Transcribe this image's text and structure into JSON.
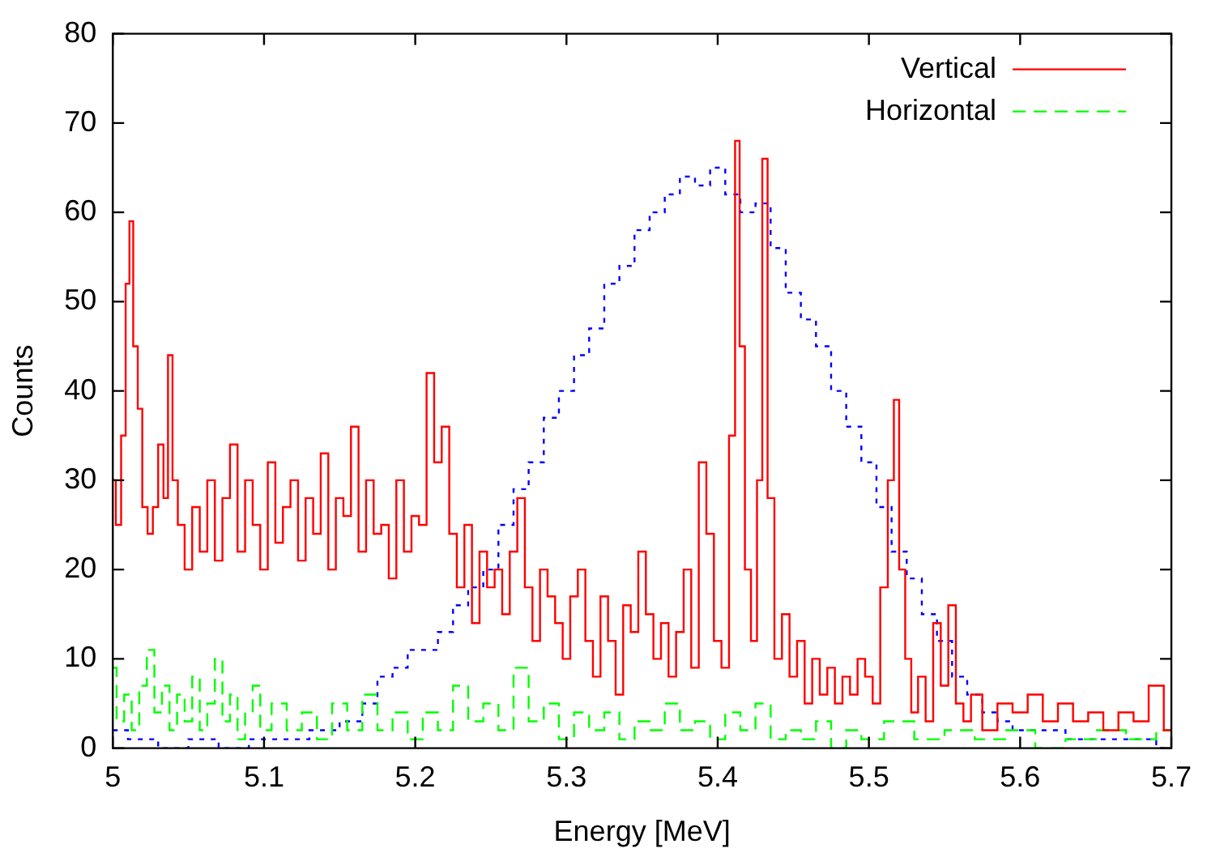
{
  "chart_data": {
    "type": "step",
    "xlabel": "Energy [MeV]",
    "ylabel": "Counts",
    "xlim": [
      5,
      5.7
    ],
    "xticks": [
      5,
      5.1,
      5.2,
      5.3,
      5.4,
      5.5,
      5.6,
      5.7
    ],
    "ylim": [
      0,
      80
    ],
    "yticks": [
      0,
      10,
      20,
      30,
      40,
      50,
      60,
      70,
      80
    ],
    "legend": "top right",
    "grid": false,
    "series": [
      {
        "name": "Vertical",
        "color": "#ff0000",
        "line_style": "solid",
        "x": [
          5.0,
          5.004,
          5.007,
          5.01,
          5.012,
          5.015,
          5.018,
          5.021,
          5.025,
          5.028,
          5.032,
          5.035,
          5.038,
          5.041,
          5.045,
          5.05,
          5.055,
          5.06,
          5.065,
          5.07,
          5.075,
          5.08,
          5.085,
          5.09,
          5.095,
          5.1,
          5.105,
          5.11,
          5.115,
          5.12,
          5.125,
          5.13,
          5.135,
          5.14,
          5.145,
          5.15,
          5.155,
          5.16,
          5.165,
          5.17,
          5.175,
          5.18,
          5.185,
          5.19,
          5.195,
          5.2,
          5.205,
          5.21,
          5.215,
          5.22,
          5.225,
          5.23,
          5.235,
          5.24,
          5.245,
          5.25,
          5.255,
          5.26,
          5.265,
          5.27,
          5.275,
          5.28,
          5.285,
          5.29,
          5.295,
          5.3,
          5.305,
          5.31,
          5.315,
          5.32,
          5.325,
          5.33,
          5.335,
          5.34,
          5.345,
          5.35,
          5.355,
          5.36,
          5.365,
          5.37,
          5.375,
          5.38,
          5.385,
          5.39,
          5.395,
          5.4,
          5.405,
          5.41,
          5.413,
          5.416,
          5.42,
          5.424,
          5.428,
          5.431,
          5.435,
          5.44,
          5.445,
          5.45,
          5.455,
          5.46,
          5.465,
          5.47,
          5.475,
          5.48,
          5.485,
          5.49,
          5.495,
          5.5,
          5.505,
          5.51,
          5.515,
          5.518,
          5.522,
          5.526,
          5.53,
          5.535,
          5.54,
          5.545,
          5.55,
          5.555,
          5.56,
          5.565,
          5.57,
          5.58,
          5.59,
          5.6,
          5.61,
          5.62,
          5.63,
          5.64,
          5.65,
          5.66,
          5.67,
          5.68,
          5.69,
          5.7
        ],
        "values": [
          30,
          25,
          35,
          52,
          59,
          45,
          38,
          27,
          24,
          27,
          34,
          28,
          44,
          30,
          25,
          20,
          27,
          22,
          30,
          21,
          28,
          34,
          22,
          30,
          25,
          20,
          32,
          23,
          27,
          30,
          21,
          28,
          24,
          33,
          20,
          28,
          26,
          36,
          22,
          30,
          24,
          25,
          19,
          30,
          22,
          26,
          25,
          42,
          32,
          36,
          24,
          18,
          25,
          14,
          22,
          18,
          20,
          15,
          22,
          28,
          18,
          12,
          20,
          17,
          14,
          10,
          17,
          20,
          12,
          8,
          17,
          12,
          6,
          16,
          13,
          22,
          15,
          10,
          14,
          8,
          13,
          20,
          9,
          32,
          24,
          12,
          9,
          35,
          68,
          45,
          20,
          12,
          30,
          66,
          28,
          10,
          15,
          8,
          12,
          5,
          10,
          6,
          9,
          5,
          8,
          6,
          10,
          8,
          5,
          18,
          30,
          39,
          20,
          10,
          4,
          8,
          3,
          14,
          7,
          16,
          5,
          3,
          6,
          2,
          5,
          4,
          6,
          3,
          5,
          3,
          4,
          2,
          4,
          3,
          7,
          2
        ]
      },
      {
        "name": "Horizontal",
        "color": "#00ff00",
        "line_style": "dashed",
        "x": [
          5.0,
          5.005,
          5.01,
          5.015,
          5.02,
          5.025,
          5.03,
          5.035,
          5.04,
          5.045,
          5.05,
          5.055,
          5.06,
          5.065,
          5.07,
          5.075,
          5.08,
          5.085,
          5.09,
          5.095,
          5.1,
          5.11,
          5.12,
          5.13,
          5.14,
          5.15,
          5.16,
          5.17,
          5.18,
          5.19,
          5.2,
          5.21,
          5.22,
          5.23,
          5.24,
          5.25,
          5.26,
          5.27,
          5.28,
          5.29,
          5.3,
          5.31,
          5.32,
          5.33,
          5.34,
          5.35,
          5.36,
          5.37,
          5.38,
          5.39,
          5.4,
          5.41,
          5.42,
          5.43,
          5.44,
          5.45,
          5.46,
          5.47,
          5.48,
          5.49,
          5.5,
          5.52,
          5.54,
          5.56,
          5.58,
          5.6,
          5.62,
          5.64,
          5.66,
          5.68,
          5.7
        ],
        "values": [
          9,
          3,
          6,
          2,
          7,
          11,
          4,
          7,
          2,
          6,
          3,
          8,
          2,
          5,
          10,
          3,
          6,
          1,
          4,
          7,
          2,
          5,
          2,
          4,
          1,
          5,
          2,
          6,
          2,
          4,
          1,
          4,
          2,
          7,
          3,
          5,
          2,
          9,
          3,
          5,
          1,
          4,
          2,
          4,
          1,
          3,
          2,
          5,
          2,
          3,
          1,
          4,
          2,
          5,
          1,
          2,
          1,
          3,
          0,
          2,
          1,
          3,
          1,
          2,
          1,
          2,
          0,
          1,
          2,
          1,
          2
        ]
      },
      {
        "color": "#0000ff",
        "line_style": "dotted",
        "x": [
          5.0,
          5.02,
          5.04,
          5.06,
          5.08,
          5.1,
          5.12,
          5.14,
          5.16,
          5.17,
          5.18,
          5.19,
          5.2,
          5.21,
          5.22,
          5.23,
          5.24,
          5.25,
          5.26,
          5.27,
          5.28,
          5.29,
          5.3,
          5.31,
          5.32,
          5.33,
          5.34,
          5.35,
          5.36,
          5.37,
          5.38,
          5.39,
          5.4,
          5.41,
          5.42,
          5.43,
          5.44,
          5.45,
          5.46,
          5.47,
          5.48,
          5.49,
          5.5,
          5.51,
          5.52,
          5.53,
          5.54,
          5.55,
          5.56,
          5.57,
          5.58,
          5.59,
          5.6,
          5.62,
          5.64,
          5.66,
          5.68,
          5.7
        ],
        "values": [
          2,
          1,
          0,
          1,
          0,
          1,
          1,
          2,
          3,
          5,
          8,
          9,
          11,
          11,
          13,
          16,
          18,
          20,
          25,
          29,
          32,
          37,
          40,
          44,
          47,
          52,
          54,
          58,
          60,
          62,
          64,
          63,
          65,
          62,
          60,
          61,
          56,
          51,
          48,
          45,
          40,
          36,
          32,
          27,
          22,
          19,
          15,
          12,
          8,
          6,
          4,
          3,
          2,
          2,
          1,
          1,
          1,
          0
        ]
      }
    ]
  }
}
